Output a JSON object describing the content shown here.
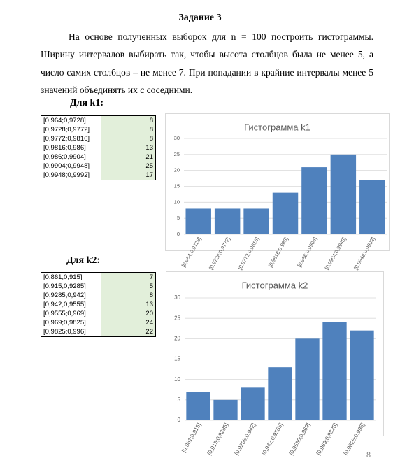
{
  "document": {
    "title": "Задание 3",
    "paragraph": "На основе полученных выборок для n = 100 построить гистограммы. Ширину интервалов выбирать так, чтобы высота столбцов была не менее 5, а число самих столбцов – не менее 7. При попадании в крайние интервалы менее 5 значений объединять их с соседними.",
    "sections": [
      {
        "label": "Для k1:",
        "table": {
          "rows": [
            [
              "[0,964;0,9728]",
              8
            ],
            [
              "[0,9728;0,9772]",
              8
            ],
            [
              "[0,9772;0,9816]",
              8
            ],
            [
              "[0,9816;0,986]",
              13
            ],
            [
              "[0,986;0,9904]",
              21
            ],
            [
              "[0,9904;0,9948]",
              25
            ],
            [
              "[0,9948;0,9992]",
              17
            ]
          ]
        }
      },
      {
        "label": "Для k2:",
        "table": {
          "rows": [
            [
              "[0,861;0,915]",
              7
            ],
            [
              "[0,915;0,9285]",
              5
            ],
            [
              "[0,9285;0,942]",
              8
            ],
            [
              "[0,942;0,9555]",
              13
            ],
            [
              "[0,9555;0,969]",
              20
            ],
            [
              "[0,969;0,9825]",
              24
            ],
            [
              "[0,9825;0,996]",
              22
            ]
          ]
        }
      }
    ],
    "page_number": "8"
  },
  "chart_data": [
    {
      "type": "bar",
      "title": "Гистограмма k1",
      "color": "#4f81bd",
      "grid": true,
      "categories": [
        "[0,964;0,9728]",
        "[0,9728;0,9772]",
        "[0,9772;0,9816]",
        "[0,9816;0,986]",
        "[0,986;0,9904]",
        "[0,9904;0,9948]",
        "[0,9948;0,9992]"
      ],
      "values": [
        8,
        8,
        8,
        13,
        21,
        25,
        17
      ],
      "ylim": [
        0,
        30
      ],
      "yticks": [
        0,
        5,
        10,
        15,
        20,
        25,
        30
      ]
    },
    {
      "type": "bar",
      "title": "Гистограмма k2",
      "color": "#4f81bd",
      "grid": true,
      "categories": [
        "[0,861;0,915]",
        "[0,915;0,9285]",
        "[0,9285;0,942]",
        "[0,942;0,9555]",
        "[0,9555;0,969]",
        "[0,969;0,9825]",
        "[0,9825;0,996]"
      ],
      "values": [
        7,
        5,
        8,
        13,
        20,
        24,
        22
      ],
      "ylim": [
        0,
        30
      ],
      "yticks": [
        0,
        5,
        10,
        15,
        20,
        25,
        30
      ]
    }
  ]
}
